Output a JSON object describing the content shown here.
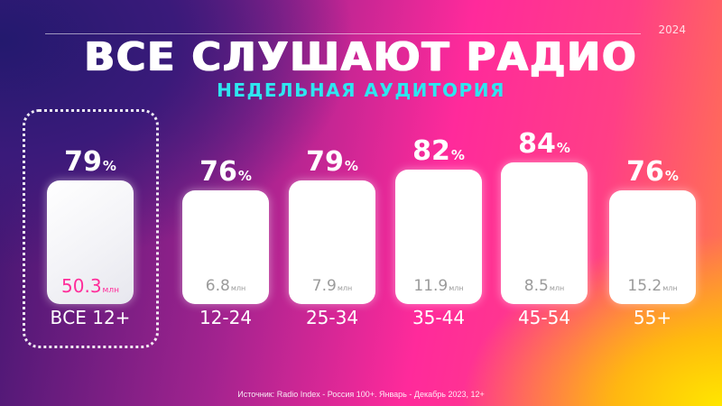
{
  "header": {
    "year": "2024",
    "title": "ВСЕ СЛУШАЮТ РАДИО",
    "subtitle": "НЕДЕЛЬНАЯ АУДИТОРИЯ"
  },
  "source": "Источник: Radio Index - Россия 100+. Январь - Декабрь 2023, 12+",
  "colors": {
    "accent_pink": "#ff2d9a",
    "subtitle_cyan": "#2ee6f0",
    "card": "#ffffff"
  },
  "chart_data": {
    "type": "bar",
    "categories": [
      "ВСЕ 12+",
      "12-24",
      "25-34",
      "35-44",
      "45-54",
      "55+"
    ],
    "series": [
      {
        "values": [
          79,
          76,
          79,
          82,
          84,
          76
        ],
        "unit": "%"
      },
      {
        "values": [
          50.3,
          6.8,
          7.9,
          11.9,
          8.5,
          15.2
        ],
        "unit": "млн"
      }
    ],
    "percent_labels": [
      "79",
      "76",
      "79",
      "82",
      "84",
      "76"
    ],
    "percent_sign": "%",
    "audience_labels": [
      "50.3",
      "6.8",
      "7.9",
      "11.9",
      "8.5",
      "15.2"
    ],
    "audience_unit": "млн",
    "highlighted_category": "ВСЕ 12+"
  }
}
